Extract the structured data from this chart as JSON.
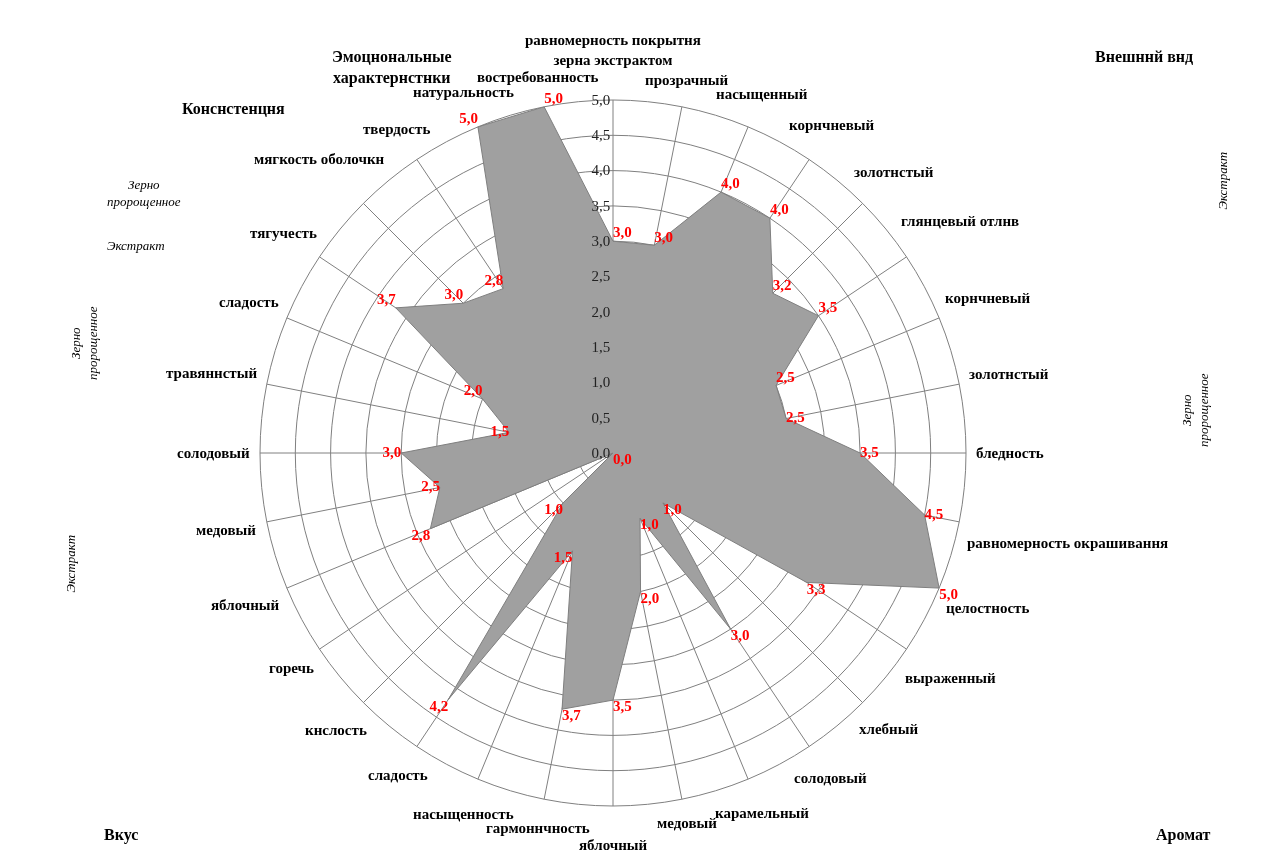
{
  "chart_data": {
    "type": "radar",
    "categories": [
      "равномерность покрытня зерна экстрактом",
      "прозрачный",
      "насыщенный",
      "корнчневый",
      "золотнстый",
      "глянцевый отлнв",
      "корнчневый",
      "золотнстый",
      "бледность",
      "равномерность окрашивання",
      "целостность",
      "выраженный",
      "хлебный",
      "солодовый",
      "карамельный",
      "медовый",
      "яблочный",
      "гармоннчность",
      "насыщенность",
      "сладость",
      "кнслость",
      "горечь",
      "яблочный",
      "медовый",
      "солодовый",
      "травяннстый",
      "сладость",
      "тягучесть",
      "мягкость оболочкн",
      "твердость",
      "натуральность",
      "востребованность"
    ],
    "series": [
      {
        "color": "#a0a0a0",
        "values": [
          3.0,
          3.0,
          4.0,
          4.0,
          3.2,
          3.5,
          2.5,
          2.5,
          3.5,
          4.5,
          5.0,
          3.3,
          1.0,
          3.0,
          1.0,
          2.0,
          3.5,
          3.7,
          1.5,
          4.2,
          1.0,
          0.0,
          2.8,
          2.5,
          3.0,
          1.5,
          2.0,
          3.7,
          3.0,
          2.8,
          5.0,
          5.0
        ],
        "value_labels": [
          "3,0",
          "3,0",
          "4,0",
          "4,0",
          "3,2",
          "3,5",
          "2,5",
          "2,5",
          "3,5",
          "4,5",
          "5,0",
          "3,3",
          "1,0",
          "3,0",
          "1,0",
          "2,0",
          "3,5",
          "3,7",
          "1,5",
          "4,2",
          "1,0",
          "0,0",
          "2,8",
          "2,5",
          "3,0",
          "1,5",
          "2,0",
          "3,7",
          "3,0",
          "2,8",
          "5,0",
          "5,0"
        ]
      }
    ],
    "ylim": [
      0,
      5
    ],
    "yticks": [
      {
        "value": 0,
        "label": "0,0"
      },
      {
        "value": 0.5,
        "label": "0,5"
      },
      {
        "value": 1,
        "label": "1,0"
      },
      {
        "value": 1.5,
        "label": "1,5"
      },
      {
        "value": 2,
        "label": "2,0"
      },
      {
        "value": 2.5,
        "label": "2,5"
      },
      {
        "value": 3,
        "label": "3,0"
      },
      {
        "value": 3.5,
        "label": "3,5"
      },
      {
        "value": 4,
        "label": "4,0"
      },
      {
        "value": 4.5,
        "label": "4,5"
      },
      {
        "value": 5,
        "label": "5,0"
      }
    ],
    "grid": true,
    "marker": "none",
    "annotations": [
      "Эмоцнональные\nхарактернстнки",
      "Конснстенцня",
      "Внешннй внд",
      "Экстракт",
      "Зерно\nпророщенное",
      "Экстракт",
      "Зерно\nпророщенное",
      "Зерно\nпророщенное",
      "Экстракт",
      "Вкус",
      "Аромат"
    ]
  }
}
